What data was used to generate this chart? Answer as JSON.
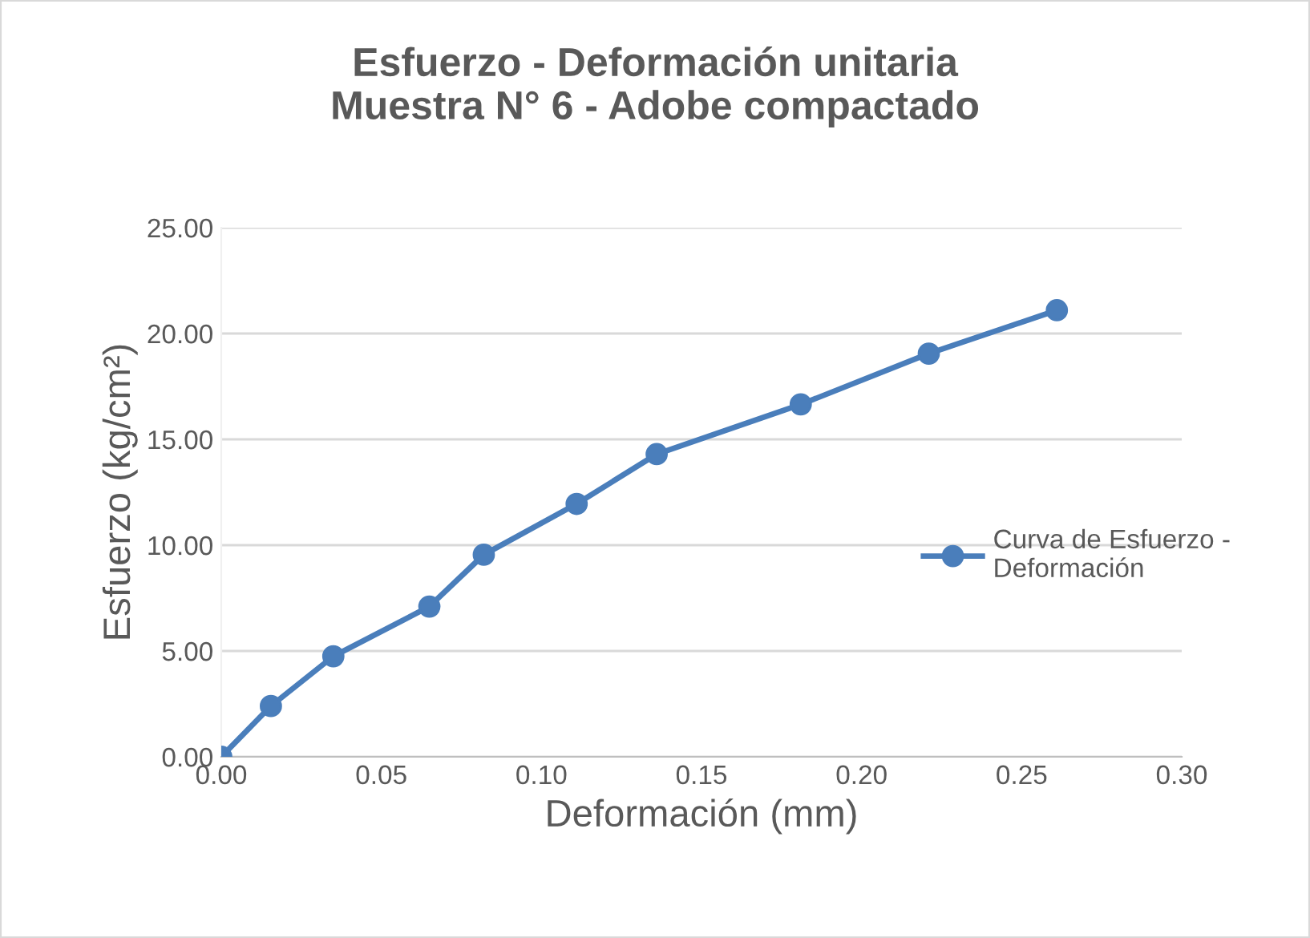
{
  "chart_data": {
    "type": "line",
    "title": "Esfuerzo - Deformación unitaria\nMuestra N° 6 - Adobe compactado",
    "xlabel": "Deformación (mm)",
    "ylabel": "Esfuerzo (kg/cm²)",
    "x": [
      0,
      0.0155,
      0.035,
      0.065,
      0.082,
      0.111,
      0.136,
      0.181,
      0.221,
      0.261
    ],
    "series": [
      {
        "name": "Curva de Esfuerzo -\nDeformación",
        "color": "#4a7ebb",
        "values": [
          0,
          2.4,
          4.75,
          7.1,
          9.55,
          11.95,
          14.3,
          16.65,
          19.05,
          21.1
        ]
      }
    ],
    "xlim": [
      0,
      0.3
    ],
    "ylim": [
      0,
      25
    ],
    "xticks": [
      {
        "value": 0,
        "label": "0.00"
      },
      {
        "value": 0.05,
        "label": "0.05"
      },
      {
        "value": 0.1,
        "label": "0.10"
      },
      {
        "value": 0.15,
        "label": "0.15"
      },
      {
        "value": 0.2,
        "label": "0.20"
      },
      {
        "value": 0.25,
        "label": "0.25"
      },
      {
        "value": 0.3,
        "label": "0.30"
      }
    ],
    "yticks": [
      {
        "value": 0,
        "label": "0.00"
      },
      {
        "value": 5,
        "label": "5.00"
      },
      {
        "value": 10,
        "label": "10.00"
      },
      {
        "value": 15,
        "label": "15.00"
      },
      {
        "value": 20,
        "label": "20.00"
      },
      {
        "value": 25,
        "label": "25.00"
      }
    ],
    "grid": "y",
    "legend": "right",
    "marker": "circle",
    "line_style": "solid"
  }
}
